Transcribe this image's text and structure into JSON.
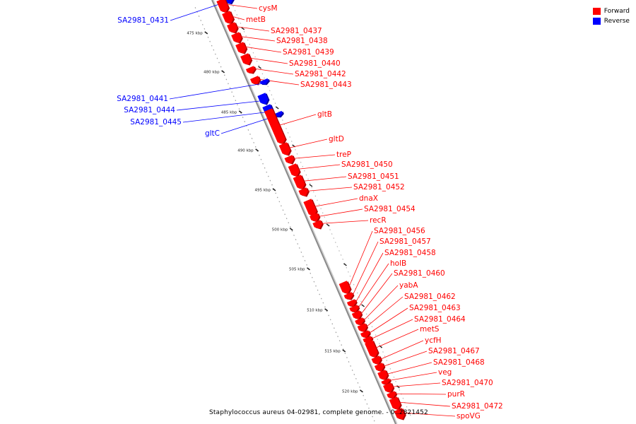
{
  "legend": [
    {
      "label": "Forward",
      "color": "#ff0000"
    },
    {
      "label": "Reverse",
      "color": "#0000ff"
    }
  ],
  "caption": "Staphylococcus aureus 04-02981, complete genome. - 0..2821452",
  "colors": {
    "forward": "#ff0000",
    "reverse": "#0000ff",
    "backbone": "#8a8a8a",
    "ticks": "#555555"
  },
  "tick_labels": [
    "475 kbp",
    "480 kbp",
    "485 kbp",
    "490 kbp",
    "495 kbp",
    "500 kbp",
    "505 kbp",
    "510 kbp",
    "515 kbp",
    "520 kbp"
  ],
  "genes": [
    {
      "name": "SA2981_0431",
      "strand": "reverse"
    },
    {
      "name": "cysM",
      "strand": "forward"
    },
    {
      "name": "metB",
      "strand": "forward"
    },
    {
      "name": "SA2981_0437",
      "strand": "forward"
    },
    {
      "name": "SA2981_0438",
      "strand": "forward"
    },
    {
      "name": "SA2981_0439",
      "strand": "forward"
    },
    {
      "name": "SA2981_0440",
      "strand": "forward"
    },
    {
      "name": "SA2981_0442",
      "strand": "forward"
    },
    {
      "name": "SA2981_0443",
      "strand": "forward"
    },
    {
      "name": "SA2981_0441",
      "strand": "reverse"
    },
    {
      "name": "SA2981_0444",
      "strand": "reverse"
    },
    {
      "name": "SA2981_0445",
      "strand": "reverse"
    },
    {
      "name": "gltC",
      "strand": "reverse"
    },
    {
      "name": "gltB",
      "strand": "forward"
    },
    {
      "name": "gltD",
      "strand": "forward"
    },
    {
      "name": "treP",
      "strand": "forward"
    },
    {
      "name": "SA2981_0450",
      "strand": "forward"
    },
    {
      "name": "SA2981_0451",
      "strand": "forward"
    },
    {
      "name": "SA2981_0452",
      "strand": "forward"
    },
    {
      "name": "dnaX",
      "strand": "forward"
    },
    {
      "name": "SA2981_0454",
      "strand": "forward"
    },
    {
      "name": "recR",
      "strand": "forward"
    },
    {
      "name": "SA2981_0456",
      "strand": "forward"
    },
    {
      "name": "SA2981_0457",
      "strand": "forward"
    },
    {
      "name": "SA2981_0458",
      "strand": "forward"
    },
    {
      "name": "holB",
      "strand": "forward"
    },
    {
      "name": "SA2981_0460",
      "strand": "forward"
    },
    {
      "name": "yabA",
      "strand": "forward"
    },
    {
      "name": "SA2981_0462",
      "strand": "forward"
    },
    {
      "name": "SA2981_0463",
      "strand": "forward"
    },
    {
      "name": "SA2981_0464",
      "strand": "forward"
    },
    {
      "name": "metS",
      "strand": "forward"
    },
    {
      "name": "ycfH",
      "strand": "forward"
    },
    {
      "name": "SA2981_0467",
      "strand": "forward"
    },
    {
      "name": "SA2981_0468",
      "strand": "forward"
    },
    {
      "name": "veg",
      "strand": "forward"
    },
    {
      "name": "SA2981_0470",
      "strand": "forward"
    },
    {
      "name": "purR",
      "strand": "forward"
    },
    {
      "name": "SA2981_0472",
      "strand": "forward"
    },
    {
      "name": "spoVG",
      "strand": "forward"
    }
  ]
}
